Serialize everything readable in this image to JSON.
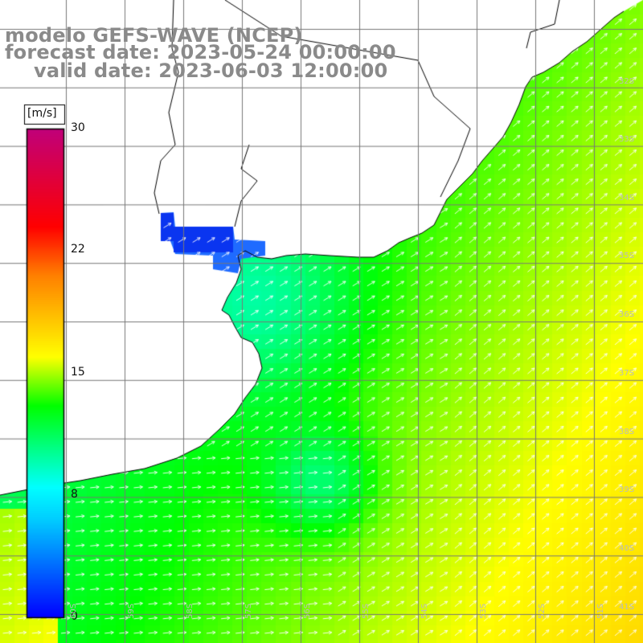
{
  "title": {
    "line1": "modelo GEFS-WAVE (NCEP)",
    "line2": "forecast date: 2023-05-24 00:00:00",
    "line3": "valid date: 2023-06-03 12:00:00"
  },
  "colorbar": {
    "unit": "[m/s]",
    "ticks": [
      "30",
      "22",
      "15",
      "8",
      "0"
    ],
    "tick_values": [
      30,
      22,
      15,
      8,
      0
    ],
    "min": 0,
    "max": 30,
    "colors": [
      "#0000ff",
      "#00ccff",
      "#00ffff",
      "#00ff00",
      "#ffff00",
      "#ff8000",
      "#ff0000",
      "#c0007a"
    ]
  },
  "map": {
    "lon_labels": [
      "60S",
      "59S",
      "58S",
      "57S",
      "56S",
      "55S",
      "54S",
      "53S",
      "52S",
      "51S"
    ],
    "lat_labels": [
      "32S",
      "33S",
      "34S",
      "35S",
      "36S",
      "37S",
      "38S",
      "39S",
      "40S",
      "41S"
    ],
    "land_color": "#ffffff",
    "gridline_color": "#777777",
    "arrow_color": "#ffffff"
  }
}
